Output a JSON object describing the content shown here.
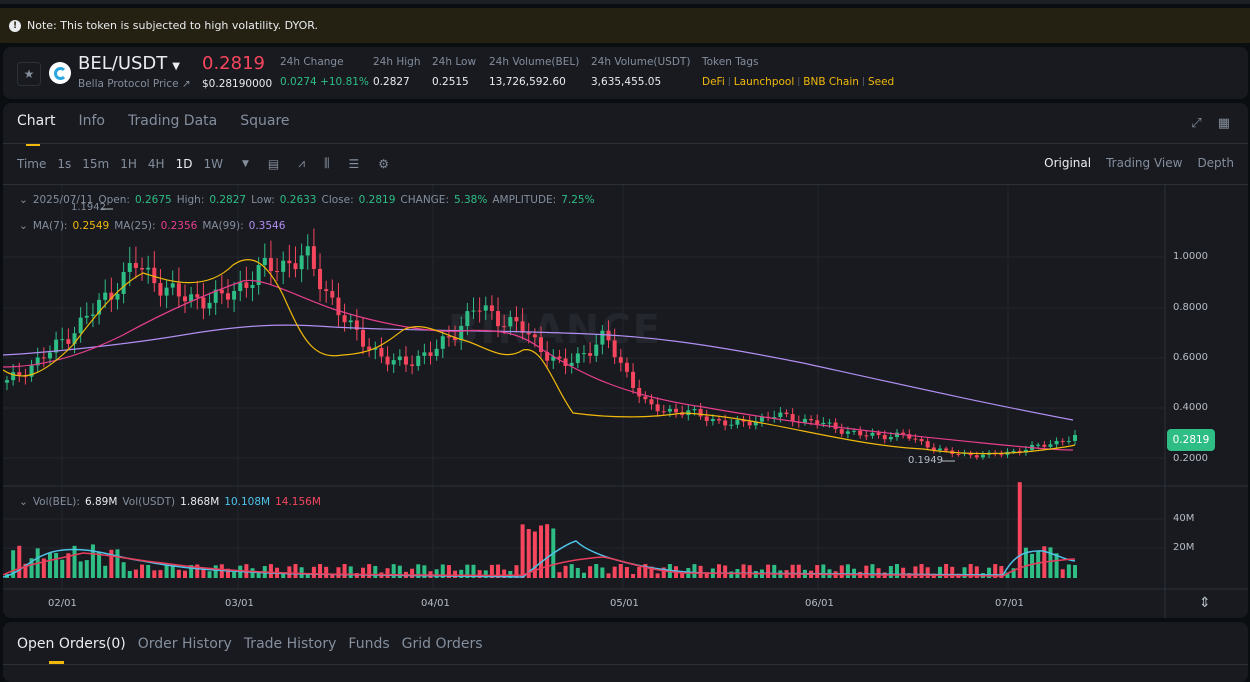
{
  "notice": {
    "icon": "alert-icon",
    "text": "Note: This token is subjected to high volatility. DYOR."
  },
  "ticker": {
    "pair": "BEL/USDT",
    "subtitle": "Bella Protocol Price ↗",
    "last_price": "0.2819",
    "last_price_usd": "$0.28190000",
    "stats": [
      {
        "label": "24h Change",
        "value": "0.0274 +10.81%",
        "color": "green"
      },
      {
        "label": "24h High",
        "value": "0.2827"
      },
      {
        "label": "24h Low",
        "value": "0.2515"
      },
      {
        "label": "24h Volume(BEL)",
        "value": "13,726,592.60"
      },
      {
        "label": "24h Volume(USDT)",
        "value": "3,635,455.05"
      }
    ],
    "token_tags_label": "Token Tags",
    "tags": [
      "DeFi",
      "Launchpool",
      "BNB Chain",
      "Seed"
    ]
  },
  "chart_panel": {
    "tabs": [
      "Chart",
      "Info",
      "Trading Data",
      "Square"
    ],
    "active_tab": "Chart",
    "intervals": [
      "Time",
      "1s",
      "15m",
      "1H",
      "4H",
      "1D",
      "1W"
    ],
    "active_interval": "1D",
    "views": [
      "Original",
      "Trading View",
      "Depth"
    ],
    "active_view": "Original",
    "ohlc": {
      "date": "2025/07/11",
      "open_label": "Open:",
      "open": "0.2675",
      "high_label": "High:",
      "high": "0.2827",
      "low_label": "Low:",
      "low": "0.2633",
      "close_label": "Close:",
      "close": "0.2819",
      "change_label": "CHANGE:",
      "change": "5.38%",
      "amplitude_label": "AMPLITUDE:",
      "amplitude": "7.25%"
    },
    "ma": {
      "ma7_label": "MA(7):",
      "ma7": "0.2549",
      "ma25_label": "MA(25):",
      "ma25": "0.2356",
      "ma99_label": "MA(99):",
      "ma99": "0.3546"
    },
    "volume_legend": {
      "vol_bel_label": "Vol(BEL):",
      "vol_bel": "6.89M",
      "vol_usdt_label": "Vol(USDT)",
      "vol_usdt": "1.868M",
      "ma_a": "10.108M",
      "ma_b": "14.156M"
    },
    "watermark": "BINANCE",
    "max_marker": "1.1942",
    "min_marker": "0.1949",
    "current_price_tag": "0.2819",
    "y_axis": [
      "1.0000",
      "0.8000",
      "0.6000",
      "0.4000",
      "0.2000"
    ],
    "vol_axis": [
      "40M",
      "20M"
    ],
    "x_axis": [
      "02/01",
      "03/01",
      "04/01",
      "05/01",
      "06/01",
      "07/01"
    ],
    "colors": {
      "up": "#2ebd85",
      "down": "#f6465d",
      "ma7": "#f0b90b",
      "ma25": "#e83e8c",
      "ma99": "#b18ff2",
      "accent": "#f0b90b"
    }
  },
  "chart_data": {
    "type": "candlestick",
    "title": "BEL/USDT 1D",
    "x_ticks": [
      "02/01",
      "03/01",
      "04/01",
      "05/01",
      "06/01",
      "07/01"
    ],
    "y_ticks": [
      1.0,
      0.8,
      0.6,
      0.4,
      0.2
    ],
    "ylim": [
      0.15,
      1.25
    ],
    "approx_close_path": [
      {
        "date": "01/19",
        "close": 0.5
      },
      {
        "date": "01/25",
        "close": 0.62
      },
      {
        "date": "02/01",
        "close": 0.78
      },
      {
        "date": "02/07",
        "close": 0.97
      },
      {
        "date": "02/13",
        "close": 0.84
      },
      {
        "date": "02/20",
        "close": 0.83
      },
      {
        "date": "02/27",
        "close": 0.95
      },
      {
        "date": "03/03",
        "close": 1.0
      },
      {
        "date": "03/08",
        "close": 0.72
      },
      {
        "date": "03/12",
        "close": 0.57
      },
      {
        "date": "03/20",
        "close": 0.62
      },
      {
        "date": "03/27",
        "close": 0.8
      },
      {
        "date": "04/01",
        "close": 0.72
      },
      {
        "date": "04/08",
        "close": 0.56
      },
      {
        "date": "04/16",
        "close": 0.68
      },
      {
        "date": "04/20",
        "close": 0.4
      },
      {
        "date": "05/01",
        "close": 0.38
      },
      {
        "date": "05/08",
        "close": 0.33
      },
      {
        "date": "05/15",
        "close": 0.37
      },
      {
        "date": "05/25",
        "close": 0.34
      },
      {
        "date": "06/01",
        "close": 0.29
      },
      {
        "date": "06/10",
        "close": 0.29
      },
      {
        "date": "06/20",
        "close": 0.22
      },
      {
        "date": "06/25",
        "close": 0.21
      },
      {
        "date": "07/05",
        "close": 0.24
      },
      {
        "date": "07/11",
        "close": 0.2819
      }
    ],
    "series": [
      {
        "name": "MA(7)",
        "last": 0.2549
      },
      {
        "name": "MA(25)",
        "last": 0.2356
      },
      {
        "name": "MA(99)",
        "last": 0.3546
      }
    ],
    "annotations": [
      {
        "label": "1.1942",
        "type": "max"
      },
      {
        "label": "0.1949",
        "type": "min"
      }
    ],
    "volume": {
      "ticks": [
        "40M",
        "20M"
      ],
      "last": "6.89M",
      "ma_values": [
        "10.108M",
        "14.156M"
      ]
    }
  },
  "orders_panel": {
    "tabs": [
      "Open Orders(0)",
      "Order History",
      "Trade History",
      "Funds",
      "Grid Orders"
    ],
    "active_tab": "Open Orders(0)"
  }
}
